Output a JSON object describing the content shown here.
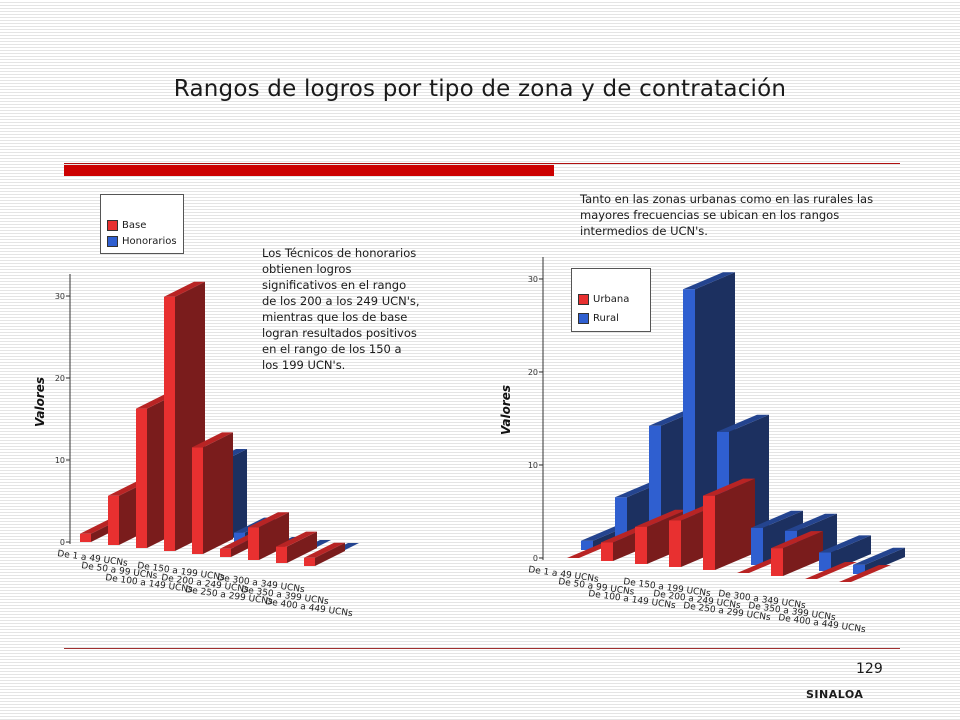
{
  "slide": {
    "title": "Rangos de logros por tipo de zona y de contratación",
    "note_left": "Los Técnicos de honorarios obtienen logros significativos en el rango de los 200 a los 249 UCN's, mientras que los de base logran resultados positivos en el rango de los 150 a los 199 UCN's.",
    "note_right": "Tanto en las zonas urbanas como en las rurales las mayores frecuencias se ubican en los rangos intermedios de UCN's.",
    "page_number": "129",
    "footer": "SINALOA"
  },
  "colors": {
    "red": "#e83030",
    "red_dark": "#7a1c1c",
    "red_top": "#b82424",
    "blue": "#2f5fd0",
    "blue_dark": "#1c3060",
    "blue_top": "#24448f"
  },
  "chart_data": [
    {
      "type": "bar",
      "style": "3d-depth",
      "title": "",
      "ylabel": "Valores",
      "xlabel": "",
      "ylim": [
        0,
        30
      ],
      "yticks": [
        "0",
        "10",
        "20",
        "30"
      ],
      "legend": "top-left",
      "categories": [
        "De 1 a 49 UCNs",
        "De 50 a 99 UCNs",
        "De 100 a 149 UCNs",
        "De 150 a 199 UCNs",
        "De 200 a 249 UCNs",
        "De 250 a 299 UCNs",
        "De 300 a 349 UCNs",
        "De 350 a 399 UCNs",
        "De 400 a 449 UCNs"
      ],
      "series": [
        {
          "name": "Base",
          "color": "red",
          "values": [
            1,
            6,
            17,
            31,
            13,
            1,
            4,
            2,
            1
          ]
        },
        {
          "name": "Honorarios",
          "color": "blue",
          "values": [
            0,
            2,
            1,
            4,
            10,
            2,
            0,
            0,
            0
          ]
        }
      ]
    },
    {
      "type": "bar",
      "style": "3d-depth",
      "title": "",
      "ylabel": "Valores",
      "xlabel": "",
      "ylim": [
        0,
        30
      ],
      "yticks": [
        "0",
        "10",
        "20",
        "30"
      ],
      "legend": "top-left",
      "categories": [
        "De 1 a 49 UCNs",
        "De 50 a 99 UCNs",
        "De 100 a 149 UCNs",
        "De 150 a 199 UCNs",
        "De 200 a 249 UCNs",
        "De 250 a 299 UCNs",
        "De 300 a 349 UCNs",
        "De 350 a 399 UCNs",
        "De 400 a 449 UCNs"
      ],
      "series": [
        {
          "name": "Urbana",
          "color": "red",
          "values": [
            0,
            2,
            4,
            5,
            8,
            0,
            3,
            0,
            0
          ]
        },
        {
          "name": "Rural",
          "color": "blue",
          "values": [
            1,
            6,
            14,
            29,
            14,
            4,
            4,
            2,
            1
          ]
        }
      ]
    }
  ]
}
